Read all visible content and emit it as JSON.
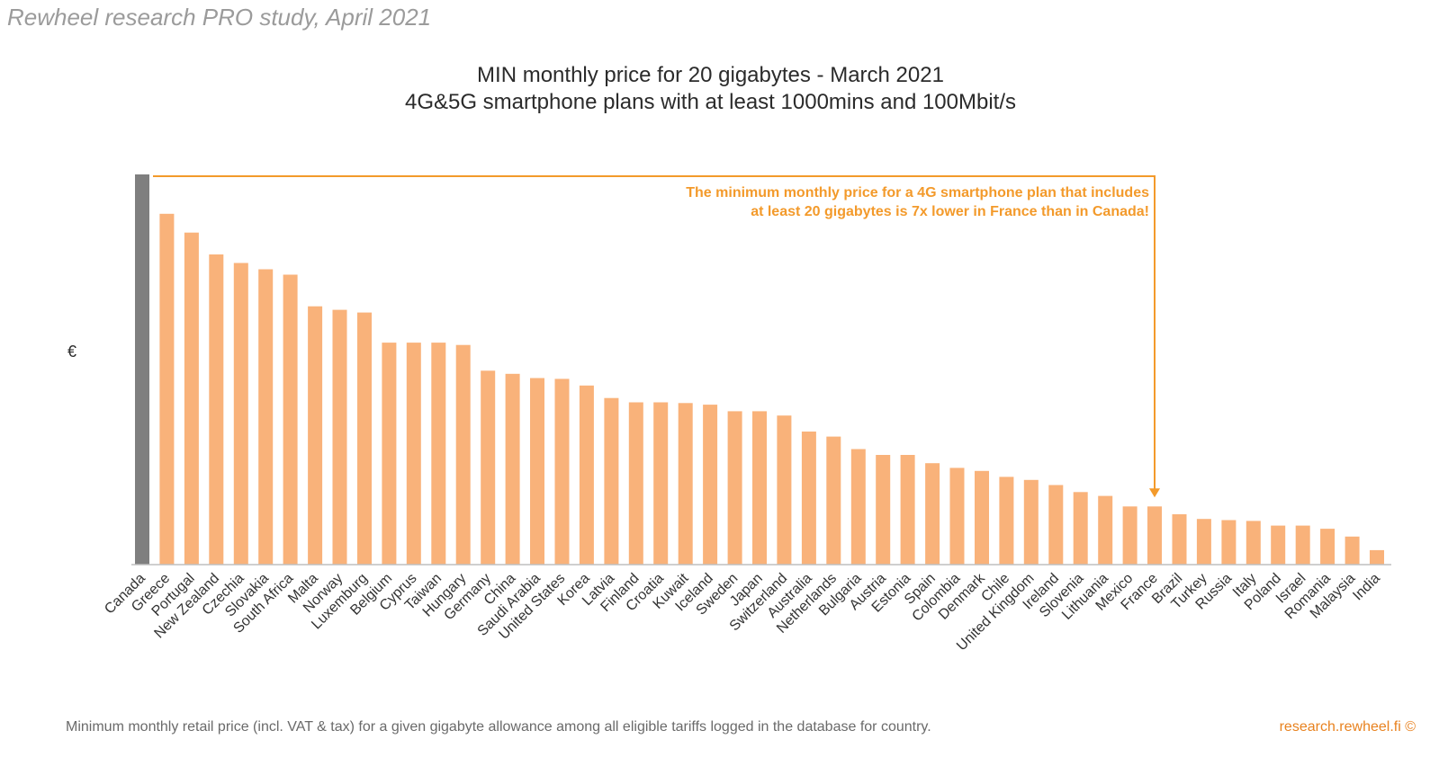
{
  "header": {
    "watermark": "Rewheel research PRO study, April 2021"
  },
  "chart_data": {
    "type": "bar",
    "title": "MIN monthly price for 20 gigabytes - March 2021",
    "subtitle": "4G&5G smartphone plans with at least 1000mins and 100Mbit/s",
    "xlabel": "",
    "ylabel": "€",
    "ylim": [
      0,
      100
    ],
    "grid": false,
    "y_tick_labels_shown": false,
    "categories": [
      "Canada",
      "Greece",
      "Portugal",
      "New Zealand",
      "Czechia",
      "Slovakia",
      "South Africa",
      "Malta",
      "Norway",
      "Luxemburg",
      "Belgium",
      "Cyprus",
      "Taiwan",
      "Hungary",
      "Germany",
      "China",
      "Saudi Arabia",
      "United States",
      "Korea",
      "Latvia",
      "Finland",
      "Croatia",
      "Kuwait",
      "Iceland",
      "Sweden",
      "Japan",
      "Switzerland",
      "Australia",
      "Netherlands",
      "Bulgaria",
      "Austria",
      "Estonia",
      "Spain",
      "Colombia",
      "Denmark",
      "Chile",
      "United Kingdom",
      "Ireland",
      "Slovenia",
      "Lithuania",
      "Mexico",
      "France",
      "Brazil",
      "Turkey",
      "Russia",
      "Italy",
      "Poland",
      "Israel",
      "Romania",
      "Malaysia",
      "India"
    ],
    "values": [
      100,
      89.9,
      85.1,
      79.5,
      77.3,
      75.7,
      74.3,
      66.2,
      65.3,
      64.6,
      56.9,
      56.9,
      56.9,
      56.3,
      49.7,
      48.9,
      47.8,
      47.6,
      45.9,
      42.7,
      41.6,
      41.6,
      41.4,
      41.0,
      39.3,
      39.3,
      38.2,
      34.1,
      32.8,
      29.6,
      28.1,
      28.1,
      26.0,
      24.8,
      24.0,
      22.5,
      21.7,
      20.4,
      18.6,
      17.6,
      14.9,
      14.9,
      12.9,
      11.7,
      11.4,
      11.2,
      10.0,
      10.0,
      9.2,
      7.2,
      3.7
    ],
    "highlight": {
      "category": "Canada",
      "color": "#7f7f7f"
    },
    "bar_color": "#f9b27a",
    "annotation": {
      "lines": [
        "The minimum monthly price for a 4G smartphone plan that includes",
        "at least 20 gigabytes is 7x lower in France than in Canada!"
      ],
      "from": "Canada",
      "to": "France",
      "color": "#f39a2b"
    }
  },
  "footer": {
    "note": "Minimum monthly retail price (incl. VAT & tax) for a given gigabyte allowance among all eligible tariffs logged in the database for country.",
    "source": "research.rewheel.fi  ©"
  }
}
